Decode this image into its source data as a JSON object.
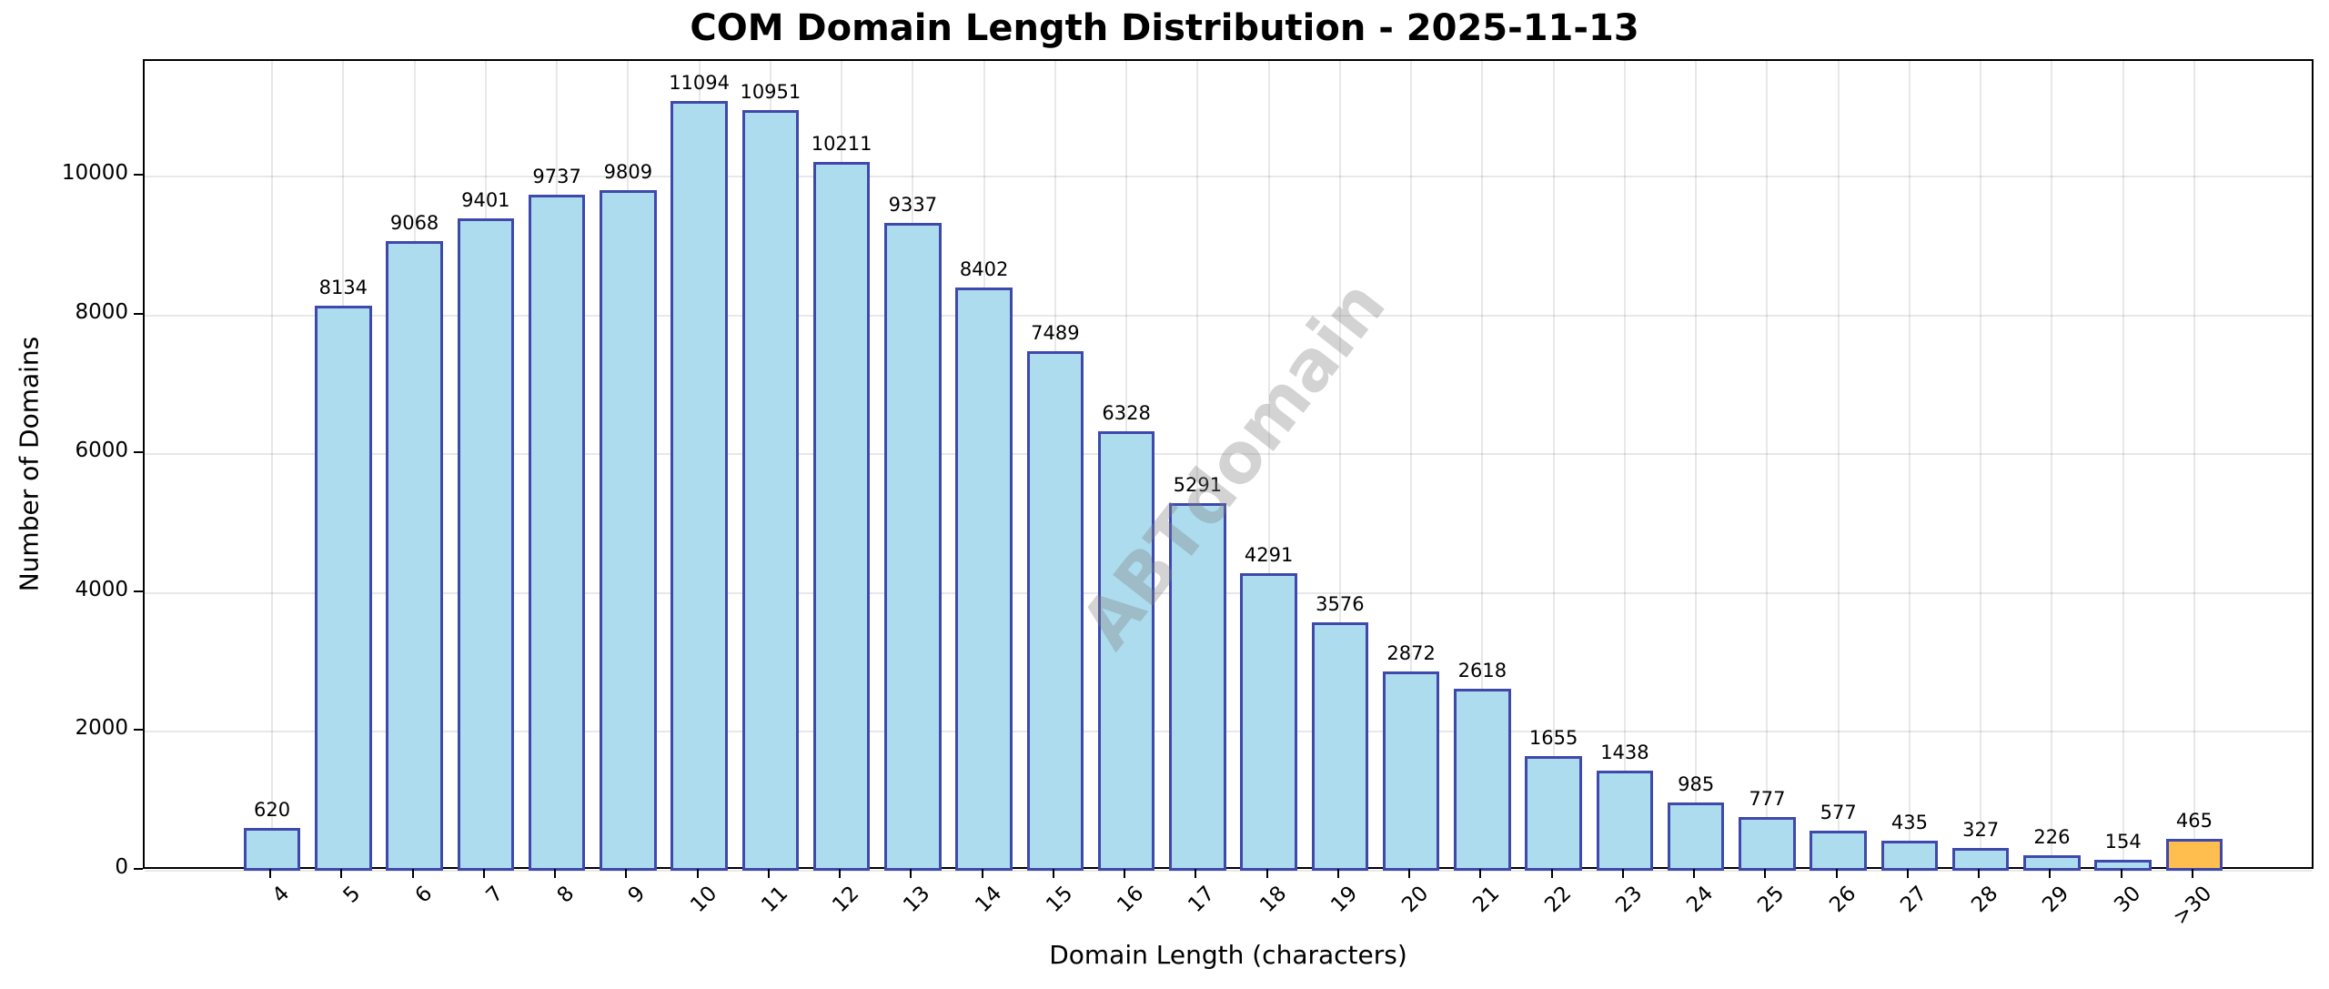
{
  "chart_data": {
    "type": "bar",
    "title": "COM Domain Length Distribution - 2025-11-13",
    "xlabel": "Domain Length (characters)",
    "ylabel": "Number of Domains",
    "categories": [
      "4",
      "5",
      "6",
      "7",
      "8",
      "9",
      "10",
      "11",
      "12",
      "13",
      "14",
      "15",
      "16",
      "17",
      "18",
      "19",
      "20",
      "21",
      "22",
      "23",
      "24",
      "25",
      "26",
      "27",
      "28",
      "29",
      "30",
      ">30"
    ],
    "values": [
      620,
      8134,
      9068,
      9401,
      9737,
      9809,
      11094,
      10951,
      10211,
      9337,
      8402,
      7489,
      6328,
      5291,
      4291,
      3576,
      2872,
      2618,
      1655,
      1438,
      985,
      777,
      577,
      435,
      327,
      226,
      154,
      465
    ],
    "bar_colors": [
      "#ADDCEE",
      "#ADDCEE",
      "#ADDCEE",
      "#ADDCEE",
      "#ADDCEE",
      "#ADDCEE",
      "#ADDCEE",
      "#ADDCEE",
      "#ADDCEE",
      "#ADDCEE",
      "#ADDCEE",
      "#ADDCEE",
      "#ADDCEE",
      "#ADDCEE",
      "#ADDCEE",
      "#ADDCEE",
      "#ADDCEE",
      "#ADDCEE",
      "#ADDCEE",
      "#ADDCEE",
      "#ADDCEE",
      "#ADDCEE",
      "#ADDCEE",
      "#ADDCEE",
      "#ADDCEE",
      "#ADDCEE",
      "#ADDCEE",
      "#FFBE4E"
    ],
    "edge_color": "#3F48AB",
    "yticks": [
      0,
      2000,
      4000,
      6000,
      8000,
      10000
    ],
    "ylim": [
      0,
      11665
    ],
    "xlim": [
      -1.79,
      28.7
    ],
    "grid": true,
    "legend": null,
    "watermark": "ABTdomain"
  }
}
